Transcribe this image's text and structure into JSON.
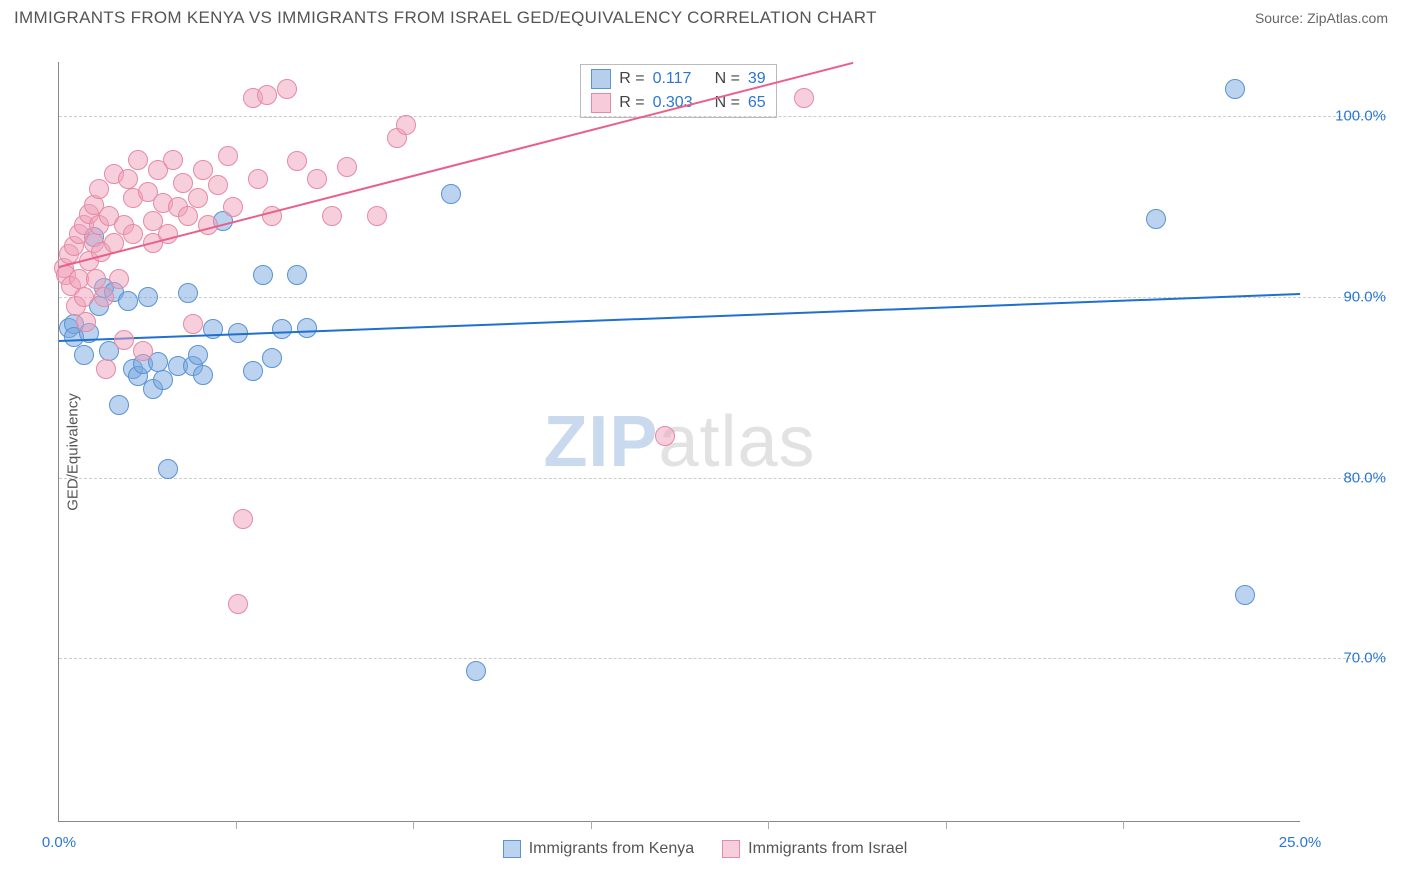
{
  "title": "IMMIGRANTS FROM KENYA VS IMMIGRANTS FROM ISRAEL GED/EQUIVALENCY CORRELATION CHART",
  "source_label": "Source: ",
  "source_name": "ZipAtlas.com",
  "ylabel": "GED/Equivalency",
  "watermark_zip": "ZIP",
  "watermark_rest": "atlas",
  "chart": {
    "type": "scatter",
    "xlim": [
      0,
      25
    ],
    "ylim": [
      61,
      103
    ],
    "yticks": [
      70,
      80,
      90,
      100
    ],
    "ytick_labels": [
      "70.0%",
      "80.0%",
      "90.0%",
      "100.0%"
    ],
    "xticks": [
      0,
      25
    ],
    "xtick_labels": [
      "0.0%",
      "25.0%"
    ],
    "x_minor_ticks": [
      3.57,
      7.14,
      10.71,
      14.29,
      17.86,
      21.43
    ],
    "grid_color": "#cccccc",
    "axis_color": "#888888",
    "background_color": "#ffffff",
    "marker_radius": 10,
    "marker_opacity": 0.55,
    "trend_width": 2,
    "series": [
      {
        "name": "Immigrants from Kenya",
        "color_stroke": "#5a93d6",
        "color_fill": "rgba(120,168,222,0.5)",
        "trend_color": "#1f70d0",
        "trend": {
          "x1": 0,
          "y1": 87.6,
          "x2": 25,
          "y2": 90.2
        },
        "r_value": "0.117",
        "n_value": "39",
        "points": [
          [
            0.2,
            88.3
          ],
          [
            0.3,
            88.5
          ],
          [
            0.3,
            87.8
          ],
          [
            0.5,
            86.8
          ],
          [
            0.6,
            88.0
          ],
          [
            0.7,
            93.3
          ],
          [
            0.8,
            89.5
          ],
          [
            0.9,
            90.5
          ],
          [
            1.0,
            87.0
          ],
          [
            1.1,
            90.3
          ],
          [
            1.2,
            84.0
          ],
          [
            1.4,
            89.8
          ],
          [
            1.5,
            86.0
          ],
          [
            1.6,
            85.6
          ],
          [
            1.7,
            86.3
          ],
          [
            1.8,
            90.0
          ],
          [
            1.9,
            84.9
          ],
          [
            2.0,
            86.4
          ],
          [
            2.1,
            85.4
          ],
          [
            2.2,
            80.5
          ],
          [
            2.4,
            86.2
          ],
          [
            2.6,
            90.2
          ],
          [
            2.7,
            86.2
          ],
          [
            2.8,
            86.8
          ],
          [
            2.9,
            85.7
          ],
          [
            3.1,
            88.2
          ],
          [
            3.3,
            94.2
          ],
          [
            3.6,
            88.0
          ],
          [
            3.9,
            85.9
          ],
          [
            4.1,
            91.2
          ],
          [
            4.3,
            86.6
          ],
          [
            4.5,
            88.2
          ],
          [
            4.8,
            91.2
          ],
          [
            5.0,
            88.3
          ],
          [
            7.9,
            95.7
          ],
          [
            8.4,
            69.3
          ],
          [
            22.1,
            94.3
          ],
          [
            23.7,
            101.5
          ],
          [
            23.9,
            73.5
          ]
        ]
      },
      {
        "name": "Immigrants from Israel",
        "color_stroke": "#e78aa3",
        "color_fill": "rgba(240,160,185,0.5)",
        "trend_color": "#ea5f8a",
        "trend": {
          "x1": 0,
          "y1": 91.7,
          "x2": 16,
          "y2": 103
        },
        "r_value": "0.303",
        "n_value": "65",
        "points": [
          [
            0.1,
            91.6
          ],
          [
            0.15,
            91.2
          ],
          [
            0.2,
            92.4
          ],
          [
            0.25,
            90.6
          ],
          [
            0.3,
            92.8
          ],
          [
            0.35,
            89.5
          ],
          [
            0.4,
            93.5
          ],
          [
            0.4,
            91.0
          ],
          [
            0.5,
            94.0
          ],
          [
            0.5,
            90.0
          ],
          [
            0.55,
            88.6
          ],
          [
            0.6,
            94.6
          ],
          [
            0.6,
            92.0
          ],
          [
            0.7,
            95.1
          ],
          [
            0.7,
            93.0
          ],
          [
            0.75,
            91.0
          ],
          [
            0.8,
            96.0
          ],
          [
            0.8,
            94.0
          ],
          [
            0.85,
            92.5
          ],
          [
            0.9,
            90.0
          ],
          [
            0.95,
            86.0
          ],
          [
            1.0,
            94.5
          ],
          [
            1.1,
            93.0
          ],
          [
            1.1,
            96.8
          ],
          [
            1.2,
            91.0
          ],
          [
            1.3,
            87.6
          ],
          [
            1.3,
            94.0
          ],
          [
            1.4,
            96.5
          ],
          [
            1.5,
            95.5
          ],
          [
            1.5,
            93.5
          ],
          [
            1.6,
            97.6
          ],
          [
            1.7,
            87.0
          ],
          [
            1.8,
            95.8
          ],
          [
            1.9,
            94.2
          ],
          [
            1.9,
            93.0
          ],
          [
            2.0,
            97.0
          ],
          [
            2.1,
            95.2
          ],
          [
            2.2,
            93.5
          ],
          [
            2.3,
            97.6
          ],
          [
            2.4,
            95.0
          ],
          [
            2.5,
            96.3
          ],
          [
            2.6,
            94.5
          ],
          [
            2.7,
            88.5
          ],
          [
            2.8,
            95.5
          ],
          [
            2.9,
            97.0
          ],
          [
            3.0,
            94.0
          ],
          [
            3.2,
            96.2
          ],
          [
            3.4,
            97.8
          ],
          [
            3.5,
            95.0
          ],
          [
            3.6,
            73.0
          ],
          [
            3.7,
            77.7
          ],
          [
            3.9,
            101.0
          ],
          [
            4.0,
            96.5
          ],
          [
            4.2,
            101.2
          ],
          [
            4.3,
            94.5
          ],
          [
            4.6,
            101.5
          ],
          [
            4.8,
            97.5
          ],
          [
            5.2,
            96.5
          ],
          [
            5.5,
            94.5
          ],
          [
            5.8,
            97.2
          ],
          [
            6.4,
            94.5
          ],
          [
            6.8,
            98.8
          ],
          [
            7.0,
            99.5
          ],
          [
            12.2,
            82.3
          ],
          [
            15.0,
            101.0
          ]
        ]
      }
    ]
  },
  "legend": {
    "stats": [
      {
        "swatch_fill": "rgba(120,168,222,0.55)",
        "swatch_stroke": "#5a93d6",
        "r": "0.117",
        "n": "39"
      },
      {
        "swatch_fill": "rgba(240,160,185,0.55)",
        "swatch_stroke": "#e78aa3",
        "r": "0.303",
        "n": "65"
      }
    ],
    "r_label": "R  =",
    "n_label": "N  ="
  }
}
